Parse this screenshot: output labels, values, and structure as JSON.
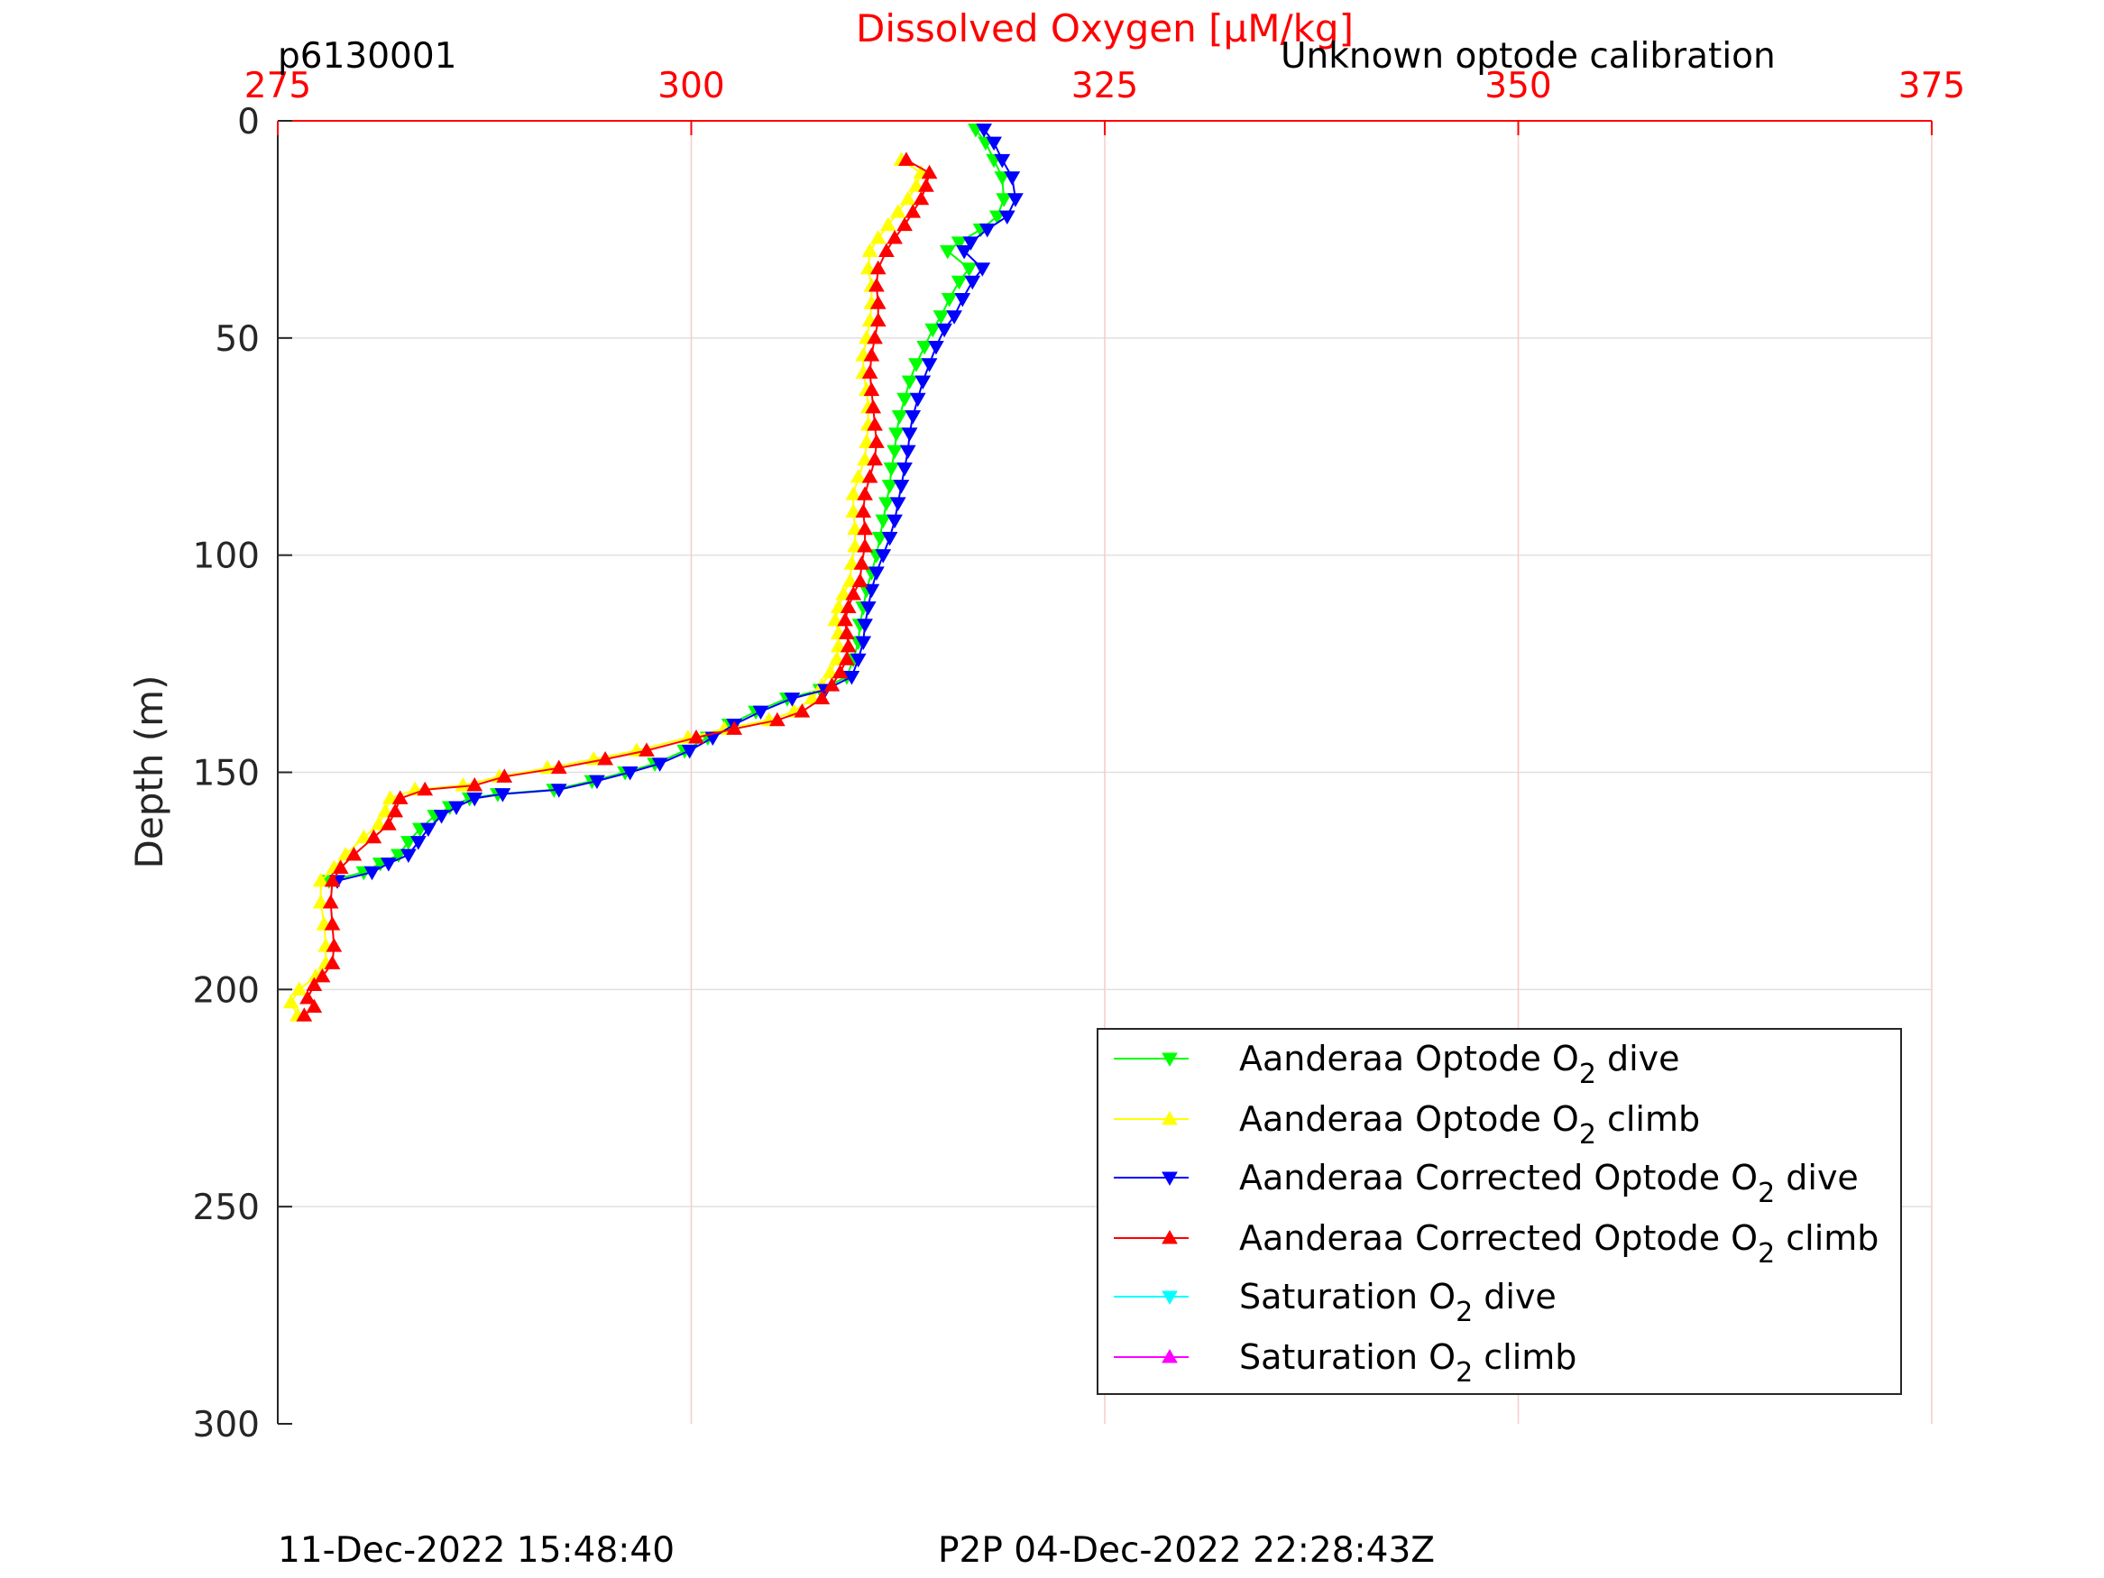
{
  "header": {
    "file_id": "p6130001",
    "calibration_note": "Unknown optode calibration"
  },
  "footer": {
    "timestamp": "11-Dec-2022 15:48:40",
    "p2p_time": "P2P 04-Dec-2022 22:28:43Z"
  },
  "colors": {
    "axis_red": "#ff0000",
    "grid": "#e0e0e0",
    "grid_red": "#f4cccc",
    "background": "#ffffff"
  },
  "chart_data": {
    "type": "line",
    "title": "",
    "xlabel": "Dissolved Oxygen [μM/kg]",
    "ylabel": "Depth (m)",
    "xlim": [
      275,
      375
    ],
    "ylim": [
      0,
      300
    ],
    "y_reversed": true,
    "x_axis_position": "top",
    "xticks": [
      "275",
      "300",
      "325",
      "350",
      "375"
    ],
    "yticks": [
      "0",
      "50",
      "100",
      "150",
      "200",
      "250",
      "300"
    ],
    "grid": true,
    "legend_position": "bottom-right",
    "series": [
      {
        "name": "Aanderaa Optode O2 dive",
        "label_main": "Aanderaa Optode O",
        "label_sub": "2",
        "label_tail": " dive",
        "color": "#00ff00",
        "marker": "triangle-down",
        "points": [
          [
            317.2,
            2
          ],
          [
            317.8,
            5
          ],
          [
            318.3,
            9
          ],
          [
            318.8,
            13
          ],
          [
            318.9,
            18
          ],
          [
            318.5,
            22
          ],
          [
            317.5,
            25
          ],
          [
            316.2,
            28
          ],
          [
            315.5,
            30
          ],
          [
            316.8,
            34
          ],
          [
            316.2,
            37
          ],
          [
            315.6,
            41
          ],
          [
            315.1,
            45
          ],
          [
            314.6,
            48
          ],
          [
            314.1,
            52
          ],
          [
            313.6,
            56
          ],
          [
            313.2,
            60
          ],
          [
            312.9,
            64
          ],
          [
            312.6,
            68
          ],
          [
            312.4,
            72
          ],
          [
            312.3,
            76
          ],
          [
            312.1,
            80
          ],
          [
            312,
            84
          ],
          [
            311.8,
            88
          ],
          [
            311.6,
            92
          ],
          [
            311.4,
            96
          ],
          [
            311.2,
            100
          ],
          [
            310.9,
            104
          ],
          [
            310.6,
            108
          ],
          [
            310.4,
            112
          ],
          [
            310.2,
            116
          ],
          [
            310.1,
            120
          ],
          [
            309.8,
            124
          ],
          [
            309.4,
            128
          ],
          [
            307.8,
            131
          ],
          [
            305.8,
            133
          ],
          [
            303.9,
            136
          ],
          [
            302.3,
            139
          ],
          [
            301,
            142
          ],
          [
            299.6,
            145
          ],
          [
            297.8,
            148
          ],
          [
            296,
            150
          ],
          [
            294,
            152
          ],
          [
            291.7,
            154
          ],
          [
            288.3,
            155
          ],
          [
            286.6,
            156
          ],
          [
            285.4,
            158
          ],
          [
            284.5,
            160
          ],
          [
            283.6,
            163
          ],
          [
            282.9,
            166
          ],
          [
            282.3,
            169
          ],
          [
            281.2,
            171
          ],
          [
            280.2,
            173
          ],
          [
            278.1,
            175
          ]
        ]
      },
      {
        "name": "Aanderaa Optode O2 climb",
        "label_main": "Aanderaa Optode O",
        "label_sub": "2",
        "label_tail": " climb",
        "color": "#ffff00",
        "marker": "triangle-up",
        "points": [
          [
            276.2,
            206
          ],
          [
            275.8,
            203
          ],
          [
            276.3,
            200
          ],
          [
            277.3,
            197
          ],
          [
            277.9,
            194
          ],
          [
            277.9,
            190
          ],
          [
            277.8,
            185
          ],
          [
            277.6,
            180
          ],
          [
            277.6,
            175
          ],
          [
            278.4,
            172
          ],
          [
            279.1,
            169
          ],
          [
            280.2,
            165
          ],
          [
            281.1,
            162
          ],
          [
            281.5,
            159
          ],
          [
            281.8,
            156
          ],
          [
            283.3,
            154
          ],
          [
            286.2,
            153
          ],
          [
            288.4,
            151
          ],
          [
            291.3,
            149
          ],
          [
            294.1,
            147
          ],
          [
            296.7,
            145
          ],
          [
            299.8,
            142
          ],
          [
            302,
            140
          ],
          [
            304.7,
            138
          ],
          [
            306.2,
            136
          ],
          [
            307.3,
            133
          ],
          [
            307.9,
            130
          ],
          [
            308.4,
            127
          ],
          [
            308.8,
            124
          ],
          [
            308.9,
            121
          ],
          [
            308.9,
            118
          ],
          [
            308.7,
            115
          ],
          [
            308.9,
            112
          ],
          [
            309.2,
            109
          ],
          [
            309.6,
            106
          ],
          [
            309.7,
            102
          ],
          [
            309.9,
            98
          ],
          [
            309.9,
            94
          ],
          [
            309.8,
            90
          ],
          [
            309.8,
            86
          ],
          [
            310.1,
            82
          ],
          [
            310.5,
            78
          ],
          [
            310.6,
            74
          ],
          [
            310.7,
            70
          ],
          [
            310.7,
            66
          ],
          [
            310.6,
            62
          ],
          [
            310.4,
            58
          ],
          [
            310.4,
            54
          ],
          [
            310.6,
            50
          ],
          [
            310.8,
            46
          ],
          [
            310.9,
            42
          ],
          [
            310.9,
            38
          ],
          [
            310.7,
            34
          ],
          [
            310.8,
            30
          ],
          [
            311.3,
            27
          ],
          [
            311.9,
            24
          ],
          [
            312.5,
            21
          ],
          [
            313.1,
            18
          ],
          [
            313.6,
            15
          ],
          [
            313.9,
            12
          ],
          [
            312.7,
            9
          ]
        ]
      },
      {
        "name": "Aanderaa Corrected Optode O2 dive",
        "label_main": "Aanderaa Corrected Optode O",
        "label_sub": "2",
        "label_tail": " dive",
        "color": "#0000ff",
        "marker": "triangle-down",
        "points": [
          [
            317.7,
            2
          ],
          [
            318.3,
            5
          ],
          [
            318.8,
            9
          ],
          [
            319.4,
            13
          ],
          [
            319.6,
            18
          ],
          [
            319.1,
            22
          ],
          [
            317.9,
            25
          ],
          [
            316.9,
            28
          ],
          [
            316.5,
            30
          ],
          [
            317.6,
            34
          ],
          [
            317,
            37
          ],
          [
            316.4,
            41
          ],
          [
            315.9,
            45
          ],
          [
            315.3,
            48
          ],
          [
            314.8,
            52
          ],
          [
            314.4,
            56
          ],
          [
            314,
            60
          ],
          [
            313.7,
            64
          ],
          [
            313.4,
            68
          ],
          [
            313.2,
            72
          ],
          [
            313.1,
            76
          ],
          [
            312.9,
            80
          ],
          [
            312.7,
            84
          ],
          [
            312.5,
            88
          ],
          [
            312.3,
            92
          ],
          [
            312,
            96
          ],
          [
            311.6,
            100
          ],
          [
            311.2,
            104
          ],
          [
            310.9,
            108
          ],
          [
            310.7,
            112
          ],
          [
            310.5,
            116
          ],
          [
            310.4,
            120
          ],
          [
            310.1,
            124
          ],
          [
            309.7,
            128
          ],
          [
            308.1,
            131
          ],
          [
            306.1,
            133
          ],
          [
            304.2,
            136
          ],
          [
            302.6,
            139
          ],
          [
            301.3,
            142
          ],
          [
            299.9,
            145
          ],
          [
            298.1,
            148
          ],
          [
            296.3,
            150
          ],
          [
            294.3,
            152
          ],
          [
            292,
            154
          ],
          [
            288.6,
            155
          ],
          [
            286.9,
            156
          ],
          [
            285.8,
            158
          ],
          [
            284.9,
            160
          ],
          [
            284.1,
            163
          ],
          [
            283.5,
            166
          ],
          [
            282.9,
            169
          ],
          [
            281.7,
            171
          ],
          [
            280.7,
            173
          ],
          [
            278.6,
            175
          ]
        ]
      },
      {
        "name": "Aanderaa Corrected Optode O2 climb",
        "label_main": "Aanderaa Corrected Optode O",
        "label_sub": "2",
        "label_tail": " climb",
        "color": "#ff0000",
        "marker": "triangle-up",
        "points": [
          [
            276.6,
            206
          ],
          [
            277.2,
            204
          ],
          [
            276.8,
            202
          ],
          [
            277.2,
            199
          ],
          [
            277.7,
            197
          ],
          [
            278.3,
            194
          ],
          [
            278.4,
            190
          ],
          [
            278.3,
            185
          ],
          [
            278.2,
            180
          ],
          [
            278.3,
            175
          ],
          [
            278.8,
            172
          ],
          [
            279.6,
            169
          ],
          [
            280.8,
            165
          ],
          [
            281.7,
            162
          ],
          [
            282.1,
            159
          ],
          [
            282.4,
            156
          ],
          [
            283.9,
            154
          ],
          [
            286.9,
            153
          ],
          [
            288.7,
            151
          ],
          [
            292,
            149
          ],
          [
            294.8,
            147
          ],
          [
            297.3,
            145
          ],
          [
            300.3,
            142
          ],
          [
            302.6,
            140
          ],
          [
            305.2,
            138
          ],
          [
            306.7,
            136
          ],
          [
            307.9,
            133
          ],
          [
            308.5,
            130
          ],
          [
            309,
            127
          ],
          [
            309.4,
            124
          ],
          [
            309.5,
            121
          ],
          [
            309.4,
            118
          ],
          [
            309.3,
            115
          ],
          [
            309.5,
            112
          ],
          [
            309.8,
            109
          ],
          [
            310.2,
            106
          ],
          [
            310.3,
            102
          ],
          [
            310.5,
            98
          ],
          [
            310.5,
            94
          ],
          [
            310.4,
            90
          ],
          [
            310.5,
            86
          ],
          [
            310.8,
            82
          ],
          [
            311.1,
            78
          ],
          [
            311.2,
            74
          ],
          [
            311.1,
            70
          ],
          [
            311,
            66
          ],
          [
            310.9,
            62
          ],
          [
            310.8,
            58
          ],
          [
            310.9,
            54
          ],
          [
            311.1,
            50
          ],
          [
            311.3,
            46
          ],
          [
            311.3,
            42
          ],
          [
            311.2,
            38
          ],
          [
            311.3,
            34
          ],
          [
            311.8,
            30
          ],
          [
            312.3,
            27
          ],
          [
            312.9,
            24
          ],
          [
            313.4,
            21
          ],
          [
            313.9,
            18
          ],
          [
            314.2,
            15
          ],
          [
            314.4,
            12
          ],
          [
            313,
            9
          ]
        ]
      },
      {
        "name": "Saturation O2 dive",
        "label_main": "Saturation O",
        "label_sub": "2",
        "label_tail": " dive",
        "color": "#00ffff",
        "marker": "triangle-down",
        "points": []
      },
      {
        "name": "Saturation O2 climb",
        "label_main": "Saturation O",
        "label_sub": "2",
        "label_tail": " climb",
        "color": "#ff00ff",
        "marker": "triangle-up",
        "points": []
      }
    ]
  }
}
